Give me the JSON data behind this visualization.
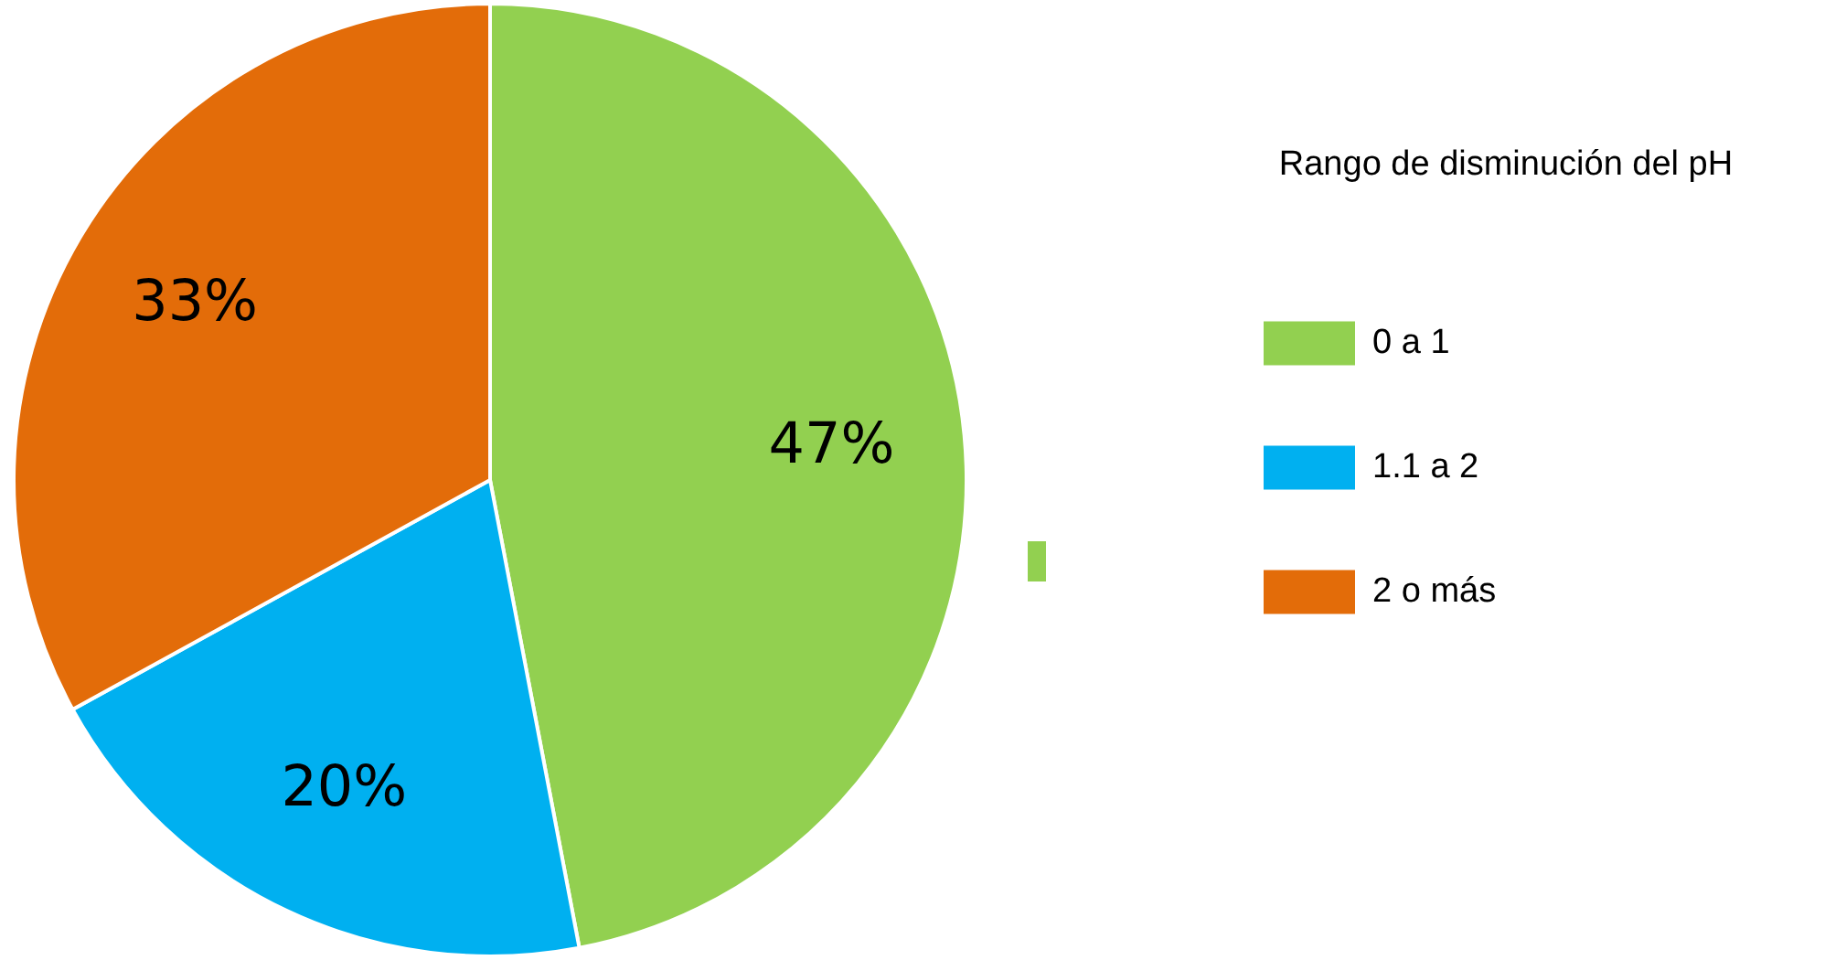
{
  "chart_data": {
    "type": "pie",
    "legend_title": "Rango de disminución del pH",
    "categories": [
      "0 a 1",
      "1.1 a 2",
      "2 o más"
    ],
    "values": [
      47,
      20,
      33
    ],
    "colors": [
      "#92d050",
      "#00b0f0",
      "#e36c09"
    ],
    "value_labels": [
      "47%",
      "20%",
      "33%"
    ],
    "legend": "right"
  }
}
